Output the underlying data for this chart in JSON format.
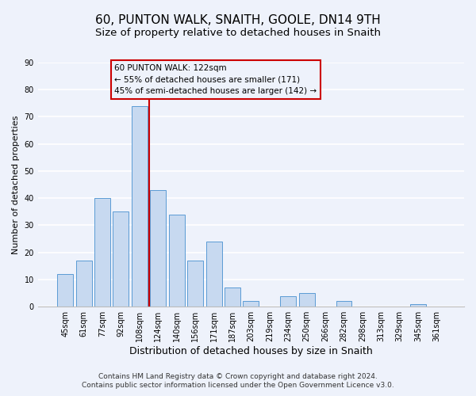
{
  "title": "60, PUNTON WALK, SNAITH, GOOLE, DN14 9TH",
  "subtitle": "Size of property relative to detached houses in Snaith",
  "xlabel": "Distribution of detached houses by size in Snaith",
  "ylabel": "Number of detached properties",
  "bar_labels": [
    "45sqm",
    "61sqm",
    "77sqm",
    "92sqm",
    "108sqm",
    "124sqm",
    "140sqm",
    "156sqm",
    "171sqm",
    "187sqm",
    "203sqm",
    "219sqm",
    "234sqm",
    "250sqm",
    "266sqm",
    "282sqm",
    "298sqm",
    "313sqm",
    "329sqm",
    "345sqm",
    "361sqm"
  ],
  "bar_values": [
    12,
    17,
    40,
    35,
    74,
    43,
    34,
    17,
    24,
    7,
    2,
    0,
    4,
    5,
    0,
    2,
    0,
    0,
    0,
    1,
    0
  ],
  "bar_color": "#c7d9f0",
  "bar_edge_color": "#5b9bd5",
  "ylim": [
    0,
    90
  ],
  "yticks": [
    0,
    10,
    20,
    30,
    40,
    50,
    60,
    70,
    80,
    90
  ],
  "vline_color": "#cc0000",
  "annotation_box_text": "60 PUNTON WALK: 122sqm\n← 55% of detached houses are smaller (171)\n45% of semi-detached houses are larger (142) →",
  "annotation_box_edge_color": "#cc0000",
  "footer_line1": "Contains HM Land Registry data © Crown copyright and database right 2024.",
  "footer_line2": "Contains public sector information licensed under the Open Government Licence v3.0.",
  "background_color": "#eef2fb",
  "grid_color": "#ffffff",
  "title_fontsize": 11,
  "subtitle_fontsize": 9.5,
  "xlabel_fontsize": 9,
  "ylabel_fontsize": 8,
  "tick_fontsize": 7,
  "footer_fontsize": 6.5,
  "annotation_fontsize": 7.5
}
